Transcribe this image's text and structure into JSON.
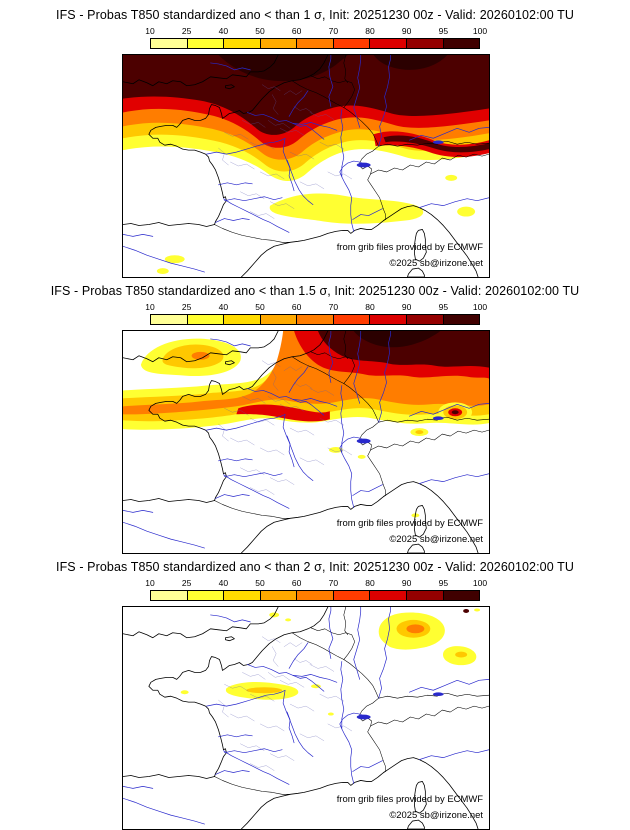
{
  "panels": [
    {
      "title": "IFS - Probas T850  standardized ano < than 1 σ, Init: 20251230 00z - Valid: 20260102:00 TU"
    },
    {
      "title": "IFS - Probas T850  standardized ano < than 1.5 σ, Init: 20251230 00z - Valid: 20260102:00 TU"
    },
    {
      "title": "IFS - Probas T850  standardized ano < than 2 σ, Init: 20251230 00z - Valid: 20260102:00 TU"
    }
  ],
  "colorbar": {
    "ticks": [
      "10",
      "25",
      "40",
      "50",
      "60",
      "70",
      "80",
      "90",
      "95",
      "100"
    ],
    "colors": [
      "#ffff96",
      "#ffff32",
      "#ffdc00",
      "#ffaa00",
      "#ff7d00",
      "#ff3c00",
      "#dc0000",
      "#940000",
      "#400000"
    ]
  },
  "palette": {
    "yellow": "#ffff32",
    "gold": "#ffc800",
    "orange": "#ff7d00",
    "red": "#e10000",
    "maroon": "#4c0000",
    "core": "#2b0000",
    "river_blue": "#2929cc",
    "border_black": "#000000"
  },
  "credits": {
    "line1": "from grib files provided by ECMWF",
    "line2": "©2025 sb@irizone.net"
  }
}
